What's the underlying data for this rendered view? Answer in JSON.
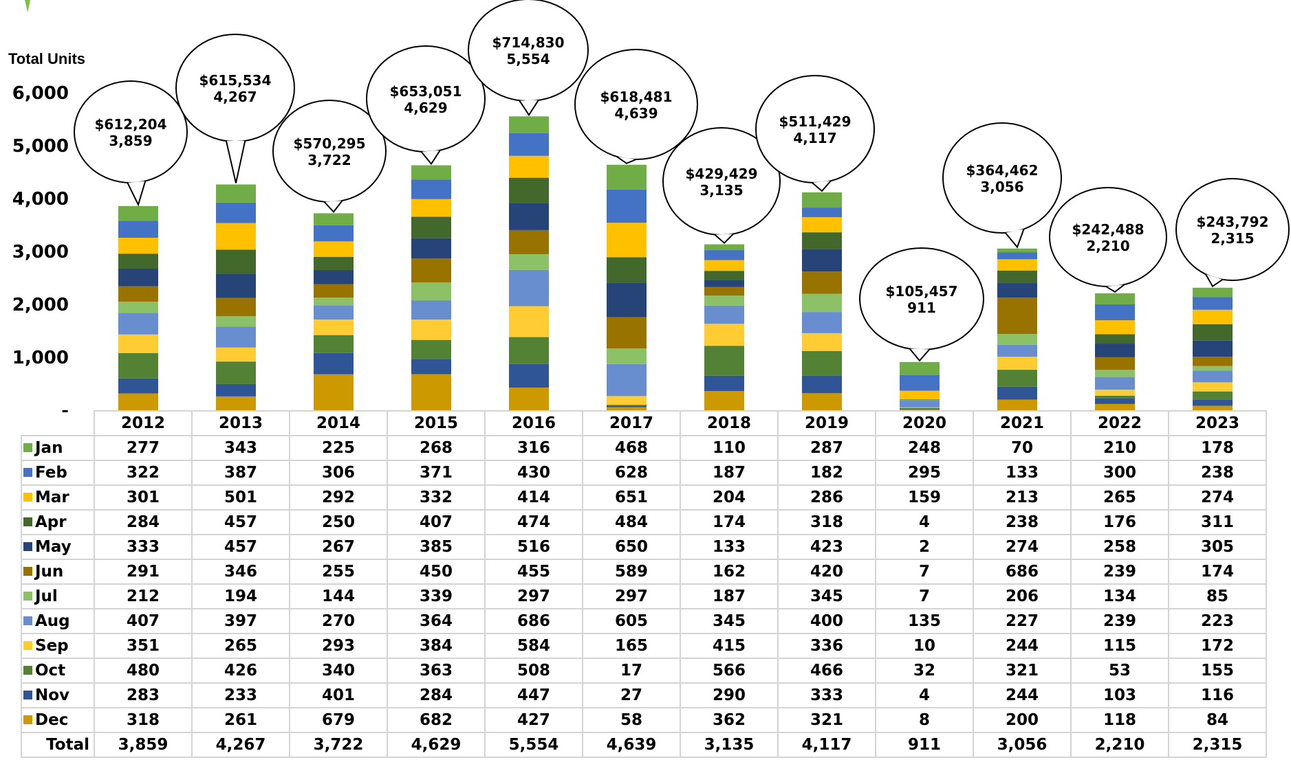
{
  "chart_data": {
    "type": "bar",
    "stacked": true,
    "ylabel": "Total Units",
    "ylim": [
      0,
      6000
    ],
    "yticks": [
      0,
      1000,
      2000,
      3000,
      4000,
      5000,
      6000
    ],
    "ytick_labels": [
      "-",
      "1,000",
      "2,000",
      "3,000",
      "4,000",
      "5,000",
      "6,000"
    ],
    "categories": [
      "2012",
      "2013",
      "2014",
      "2015",
      "2016",
      "2017",
      "2018",
      "2019",
      "2020",
      "2021",
      "2022",
      "2023"
    ],
    "series": [
      {
        "name": "Jan",
        "color": "#70ad47",
        "values": [
          277,
          343,
          225,
          268,
          316,
          468,
          110,
          287,
          248,
          70,
          210,
          178
        ]
      },
      {
        "name": "Feb",
        "color": "#4472c4",
        "values": [
          322,
          387,
          306,
          371,
          430,
          628,
          187,
          182,
          295,
          133,
          300,
          238
        ]
      },
      {
        "name": "Mar",
        "color": "#ffc000",
        "values": [
          301,
          501,
          292,
          332,
          414,
          651,
          204,
          286,
          159,
          213,
          265,
          274
        ]
      },
      {
        "name": "Apr",
        "color": "#43682b",
        "values": [
          284,
          457,
          250,
          407,
          474,
          484,
          174,
          318,
          4,
          238,
          176,
          311
        ]
      },
      {
        "name": "May",
        "color": "#264478",
        "values": [
          333,
          457,
          267,
          385,
          516,
          650,
          133,
          423,
          2,
          274,
          258,
          305
        ]
      },
      {
        "name": "Jun",
        "color": "#997300",
        "values": [
          291,
          346,
          255,
          450,
          455,
          589,
          162,
          420,
          7,
          686,
          239,
          174
        ]
      },
      {
        "name": "Jul",
        "color": "#8cc168",
        "values": [
          212,
          194,
          144,
          339,
          297,
          297,
          187,
          345,
          7,
          206,
          134,
          85
        ]
      },
      {
        "name": "Aug",
        "color": "#698ed0",
        "values": [
          407,
          397,
          270,
          364,
          686,
          605,
          345,
          400,
          135,
          227,
          239,
          223
        ]
      },
      {
        "name": "Sep",
        "color": "#ffcd33",
        "values": [
          351,
          265,
          293,
          384,
          584,
          165,
          415,
          336,
          10,
          244,
          115,
          172
        ]
      },
      {
        "name": "Oct",
        "color": "#548235",
        "values": [
          480,
          426,
          340,
          363,
          508,
          17,
          566,
          466,
          32,
          321,
          53,
          155
        ]
      },
      {
        "name": "Nov",
        "color": "#2f5597",
        "values": [
          283,
          233,
          401,
          284,
          447,
          27,
          290,
          333,
          4,
          244,
          103,
          116
        ]
      },
      {
        "name": "Dec",
        "color": "#cc9900",
        "values": [
          318,
          261,
          679,
          682,
          427,
          58,
          362,
          321,
          8,
          200,
          118,
          84
        ]
      }
    ],
    "total_label": "Total",
    "totals": [
      "3,859",
      "4,267",
      "3,722",
      "4,629",
      "5,554",
      "4,639",
      "3,135",
      "4,117",
      "911",
      "3,056",
      "2,210",
      "2,315"
    ],
    "total_values": [
      3859,
      4267,
      3722,
      4629,
      5554,
      4639,
      3135,
      4117,
      911,
      3056,
      2210,
      2315
    ],
    "callouts": [
      {
        "line1": "$612,204",
        "line2": "3,859"
      },
      {
        "line1": "$615,534",
        "line2": "4,267"
      },
      {
        "line1": "$570,295",
        "line2": "3,722"
      },
      {
        "line1": "$653,051",
        "line2": "4,629"
      },
      {
        "line1": "$714,830",
        "line2": "5,554"
      },
      {
        "line1": "$618,481",
        "line2": "4,639"
      },
      {
        "line1": "$429,429",
        "line2": "3,135"
      },
      {
        "line1": "$511,429",
        "line2": "4,117"
      },
      {
        "line1": "$105,457",
        "line2": "911"
      },
      {
        "line1": "$364,462",
        "line2": "3,056"
      },
      {
        "line1": "$242,488",
        "line2": "2,210"
      },
      {
        "line1": "$243,792",
        "line2": "2,315"
      }
    ],
    "grid": false,
    "legend": "table-row-labels"
  }
}
